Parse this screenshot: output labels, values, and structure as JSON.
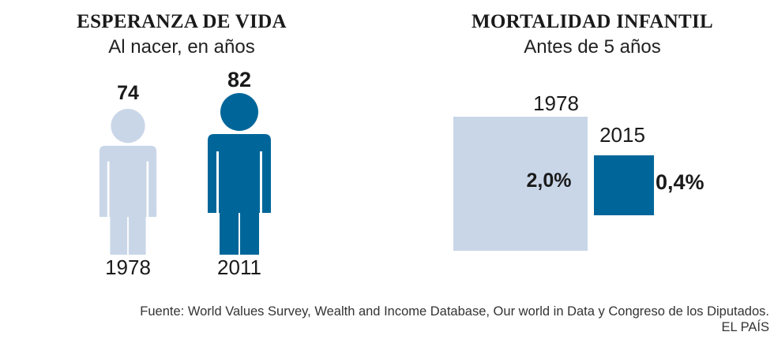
{
  "charts": {
    "left": {
      "title": "ESPERANZA DE VIDA",
      "subtitle": "Al nacer, en años"
    },
    "right": {
      "title": "MORTALIDAD INFANTIL",
      "subtitle": "Antes de 5 años"
    }
  },
  "chart_data": [
    {
      "type": "pictogram",
      "title": "ESPERANZA DE VIDA",
      "subtitle": "Al nacer, en años",
      "categories": [
        "1978",
        "2011"
      ],
      "values": [
        74,
        82
      ],
      "value_labels": [
        "74",
        "82"
      ],
      "colors": [
        "#c9d6e8",
        "#006699"
      ]
    },
    {
      "type": "area",
      "title": "MORTALIDAD INFANTIL",
      "subtitle": "Antes de 5 años",
      "categories": [
        "1978",
        "2015"
      ],
      "values": [
        2.0,
        0.4
      ],
      "value_labels": [
        "2,0%",
        "0,4%"
      ],
      "colors": [
        "#c9d6e8",
        "#006699"
      ]
    }
  ],
  "footer": {
    "source": "Fuente: World Values Survey, Wealth and Income Database, Our world in Data y Congreso de los Diputados.",
    "brand": "EL PAÍS"
  },
  "colors": {
    "light": "#c9d6e8",
    "dark": "#006699"
  }
}
